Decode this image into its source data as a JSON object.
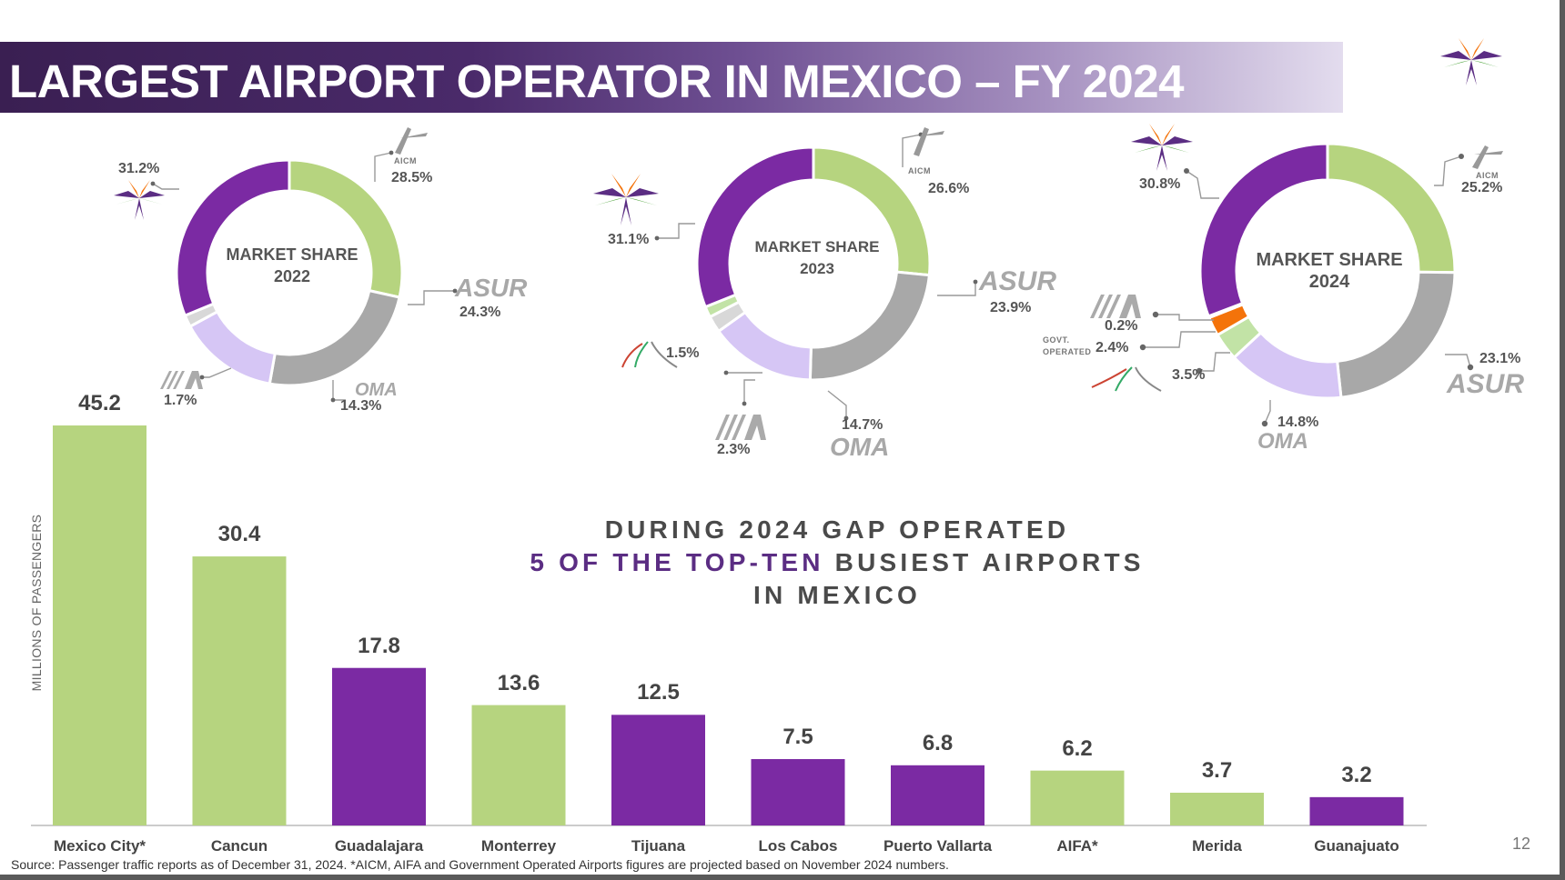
{
  "title": "LARGEST AIRPORT OPERATOR IN  MEXICO – FY 2024",
  "page_number": "12",
  "colors": {
    "gap": "#7b2aa3",
    "aicm": "#b6d47f",
    "asur": "#a8a8a8",
    "oma": "#d6c6f5",
    "aifa": "#c2e3a6",
    "govt": "#f4730a",
    "other": "#d8d8d8"
  },
  "brands": {
    "aicm": "AICM",
    "asur": "ASUR",
    "oma": "OMA",
    "govt_line1": "GOVT.",
    "govt_line2": "OPERATED"
  },
  "middle_text": {
    "line1": "DURING 2024 GAP OPERATED",
    "line2_highlight": "5 OF THE TOP-TEN",
    "line2_rest": " BUSIEST AIRPORTS",
    "line3": "IN MEXICO"
  },
  "source": "Source:  Passenger traffic reports as of December 31, 2024. *AICM, AIFA and Government Operated  Airports figures are projected based on November 2024 numbers.",
  "chart_data": [
    {
      "type": "pie",
      "title": "MARKET SHARE 2022",
      "center_line1": "MARKET SHARE",
      "center_line2": "2022",
      "slices": [
        {
          "name": "AICM",
          "value": 28.5,
          "label": "28.5%"
        },
        {
          "name": "ASUR",
          "value": 24.3,
          "label": "24.3%"
        },
        {
          "name": "OMA",
          "value": 14.3,
          "label": "14.3%"
        },
        {
          "name": "AIFA",
          "value": 1.7,
          "label": "1.7%"
        },
        {
          "name": "GAP",
          "value": 31.2,
          "label": "31.2%"
        }
      ]
    },
    {
      "type": "pie",
      "title": "MARKET SHARE 2023",
      "center_line1": "MARKET SHARE",
      "center_line2": "2023",
      "slices": [
        {
          "name": "AICM",
          "value": 26.6,
          "label": "26.6%"
        },
        {
          "name": "ASUR",
          "value": 23.9,
          "label": "23.9%"
        },
        {
          "name": "OMA",
          "value": 14.7,
          "label": "14.7%"
        },
        {
          "name": "AIFA",
          "value": 2.3,
          "label": "2.3%"
        },
        {
          "name": "Other",
          "value": 1.5,
          "label": "1.5%"
        },
        {
          "name": "GAP",
          "value": 31.1,
          "label": "31.1%"
        }
      ]
    },
    {
      "type": "pie",
      "title": "MARKET SHARE 2024",
      "center_line1": "MARKET  SHARE",
      "center_line2": "2024",
      "slices": [
        {
          "name": "AICM",
          "value": 25.2,
          "label": "25.2%"
        },
        {
          "name": "ASUR",
          "value": 23.1,
          "label": "23.1%"
        },
        {
          "name": "OMA",
          "value": 14.8,
          "label": "14.8%"
        },
        {
          "name": "Other",
          "value": 3.5,
          "label": "3.5%"
        },
        {
          "name": "Govt. Operated",
          "value": 2.4,
          "label": "2.4%"
        },
        {
          "name": "AIFA",
          "value": 0.2,
          "label": "0.2%"
        },
        {
          "name": "GAP",
          "value": 30.8,
          "label": "30.8%"
        }
      ]
    },
    {
      "type": "bar",
      "title": "",
      "ylabel": "MILLIONS OF PASSENGERS",
      "xlabel": "",
      "ylim": [
        0,
        45.2
      ],
      "categories": [
        "Mexico City*",
        "Cancun",
        "Guadalajara",
        "Monterrey",
        "Tijuana",
        "Los Cabos",
        "Puerto Vallarta",
        "AIFA*",
        "Merida",
        "Guanajuato"
      ],
      "values": [
        45.2,
        30.4,
        17.8,
        13.6,
        12.5,
        7.5,
        6.8,
        6.2,
        3.7,
        3.2
      ],
      "value_labels": [
        "45.2",
        "30.4",
        "17.8",
        "13.6",
        "12.5",
        "7.5",
        "6.8",
        "6.2",
        "3.7",
        "3.2"
      ],
      "operators": [
        "AICM",
        "ASUR",
        "GAP",
        "OMA",
        "GAP",
        "GAP",
        "GAP",
        "AIFA",
        "ASUR",
        "GAP"
      ]
    }
  ]
}
